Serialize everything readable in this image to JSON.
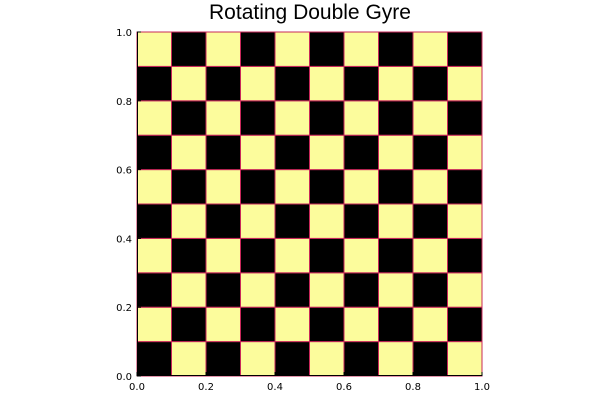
{
  "chart_data": {
    "type": "heatmap",
    "title": "Rotating Double Gyre",
    "xlabel": "",
    "ylabel": "",
    "xlim": [
      0.0,
      1.0
    ],
    "ylim": [
      0.0,
      1.0
    ],
    "xticks": [
      "0.0",
      "0.2",
      "0.4",
      "0.6",
      "0.8",
      "1.0"
    ],
    "yticks": [
      "0.0",
      "0.2",
      "0.4",
      "0.6",
      "0.8",
      "1.0"
    ],
    "grid": false,
    "nx": 10,
    "ny": 10,
    "values": [
      [
        1,
        0,
        1,
        0,
        1,
        0,
        1,
        0,
        1,
        0
      ],
      [
        0,
        1,
        0,
        1,
        0,
        1,
        0,
        1,
        0,
        1
      ],
      [
        1,
        0,
        1,
        0,
        1,
        0,
        1,
        0,
        1,
        0
      ],
      [
        0,
        1,
        0,
        1,
        0,
        1,
        0,
        1,
        0,
        1
      ],
      [
        1,
        0,
        1,
        0,
        1,
        0,
        1,
        0,
        1,
        0
      ],
      [
        0,
        1,
        0,
        1,
        0,
        1,
        0,
        1,
        0,
        1
      ],
      [
        1,
        0,
        1,
        0,
        1,
        0,
        1,
        0,
        1,
        0
      ],
      [
        0,
        1,
        0,
        1,
        0,
        1,
        0,
        1,
        0,
        1
      ],
      [
        1,
        0,
        1,
        0,
        1,
        0,
        1,
        0,
        1,
        0
      ],
      [
        0,
        1,
        0,
        1,
        0,
        1,
        0,
        1,
        0,
        1
      ]
    ],
    "colors": {
      "low": "#fcfc9c",
      "high": "#000000",
      "edge": "#c8285a"
    }
  }
}
